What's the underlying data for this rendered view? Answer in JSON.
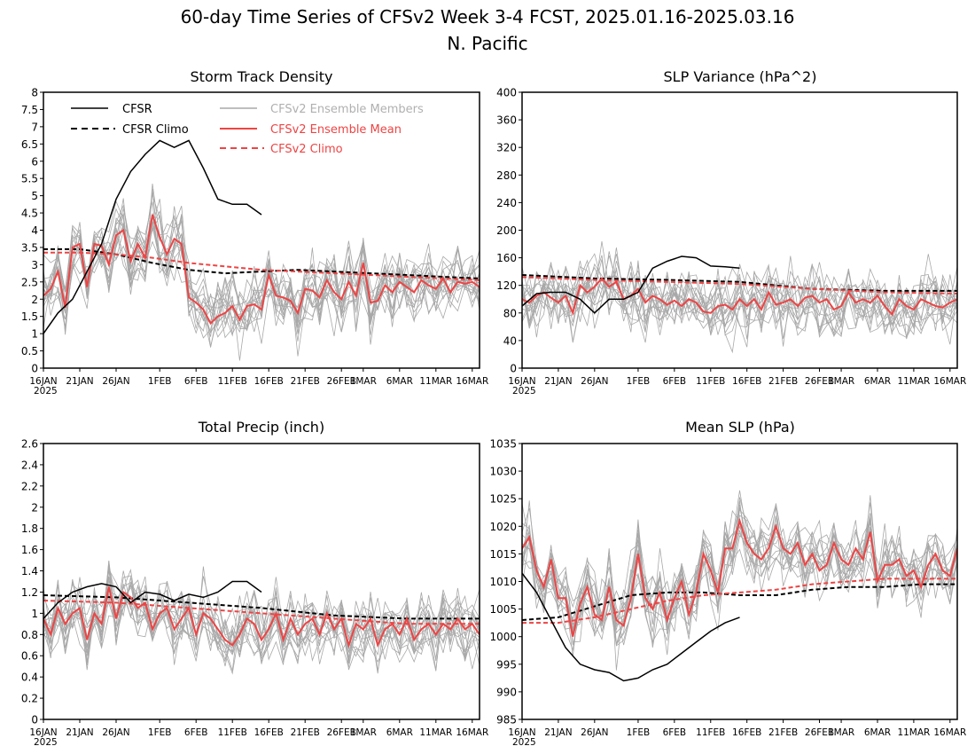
{
  "figure": {
    "title_line1": "60-day Time Series of CFSv2 Week 3-4 FCST, 2025.01.16-2025.03.16",
    "title_line2": "N. Pacific"
  },
  "colors": {
    "cfsr": "#000000",
    "members": "#a8a8a8",
    "ens_mean": "#ee4444",
    "cfsv2_climo": "#ee4444",
    "legend_members_text": "#b0b0b0",
    "legend_red_text": "#ee4444"
  },
  "legend": {
    "cfsr": "CFSR",
    "cfsr_climo": "CFSR Climo",
    "members": "CFSv2 Ensemble Members",
    "ens_mean": "CFSv2 Ensemble Mean",
    "cfsv2_climo": "CFSv2 Climo"
  },
  "x_axis": {
    "labels": [
      "16JAN",
      "21JAN",
      "26JAN",
      "1FEB",
      "6FEB",
      "11FEB",
      "16FEB",
      "21FEB",
      "26FEB",
      "1MAR",
      "6MAR",
      "11MAR",
      "16MAR"
    ],
    "year_label": "2025"
  },
  "chart_data": [
    {
      "type": "line",
      "title": "Storm Track Density",
      "ylim": [
        0,
        8
      ],
      "yticks": [
        "0",
        "0.5",
        "1",
        "1.5",
        "2",
        "2.5",
        "3",
        "3.5",
        "4",
        "4.5",
        "5",
        "5.5",
        "6",
        "6.5",
        "7",
        "7.5",
        "8"
      ],
      "x_day_range": [
        0,
        60
      ],
      "ensemble_members": {
        "count": 16,
        "note": "gray spaghetti lines around the ensemble mean"
      },
      "series": [
        {
          "name": "CFSR",
          "style": "solid-black",
          "x": [
            0,
            2,
            4,
            6,
            8,
            10,
            12,
            14,
            16,
            18,
            20,
            22,
            24,
            26,
            28,
            30
          ],
          "y": [
            1.0,
            1.6,
            2.0,
            2.8,
            3.6,
            4.9,
            5.7,
            6.2,
            6.6,
            6.4,
            6.6,
            5.8,
            4.9,
            4.75,
            4.75,
            4.45
          ]
        },
        {
          "name": "CFSR Climo",
          "style": "dashed-black",
          "x": [
            0,
            5,
            10,
            15,
            20,
            25,
            30,
            35,
            40,
            45,
            50,
            55,
            60
          ],
          "y": [
            3.45,
            3.45,
            3.3,
            3.05,
            2.85,
            2.75,
            2.8,
            2.85,
            2.8,
            2.75,
            2.7,
            2.65,
            2.6
          ]
        },
        {
          "name": "CFSv2 Ensemble Mean",
          "style": "solid-red",
          "x": [
            0,
            1,
            2,
            3,
            4,
            5,
            6,
            7,
            8,
            9,
            10,
            11,
            12,
            13,
            14,
            15,
            16,
            17,
            18,
            19,
            20,
            21,
            22,
            23,
            24,
            25,
            26,
            27,
            28,
            29,
            30,
            31,
            32,
            33,
            34,
            35,
            36,
            37,
            38,
            39,
            40,
            41,
            42,
            43,
            44,
            45,
            46,
            47,
            48,
            49,
            50,
            51,
            52,
            53,
            54,
            55,
            56,
            57,
            58,
            59,
            60
          ],
          "y": [
            2.1,
            2.3,
            2.8,
            1.75,
            3.5,
            3.6,
            2.35,
            3.6,
            3.55,
            3.0,
            3.85,
            4.0,
            3.1,
            3.6,
            3.2,
            4.45,
            3.8,
            3.3,
            3.75,
            3.6,
            2.05,
            1.9,
            1.7,
            1.3,
            1.5,
            1.6,
            1.8,
            1.4,
            1.8,
            1.85,
            1.7,
            2.7,
            2.1,
            2.05,
            1.95,
            1.6,
            2.3,
            2.25,
            2.05,
            2.55,
            2.2,
            2.0,
            2.5,
            2.1,
            3.05,
            1.9,
            1.95,
            2.4,
            2.2,
            2.5,
            2.35,
            2.2,
            2.55,
            2.4,
            2.3,
            2.6,
            2.2,
            2.5,
            2.45,
            2.5,
            2.35
          ]
        },
        {
          "name": "CFSv2 Climo",
          "style": "dashed-red",
          "x": [
            0,
            5,
            10,
            15,
            20,
            25,
            30,
            35,
            40,
            45,
            50,
            55,
            60
          ],
          "y": [
            3.35,
            3.35,
            3.3,
            3.2,
            3.05,
            2.95,
            2.85,
            2.8,
            2.75,
            2.7,
            2.65,
            2.6,
            2.55
          ]
        }
      ]
    },
    {
      "type": "line",
      "title": "SLP Variance (hPa^2)",
      "ylim": [
        0,
        400
      ],
      "yticks": [
        "0",
        "40",
        "80",
        "120",
        "160",
        "200",
        "240",
        "280",
        "320",
        "360",
        "400"
      ],
      "x_day_range": [
        0,
        60
      ],
      "ensemble_members": {
        "count": 16,
        "note": "gray spaghetti lines around the ensemble mean"
      },
      "series": [
        {
          "name": "CFSR",
          "style": "solid-black",
          "x": [
            0,
            2,
            4,
            6,
            8,
            10,
            12,
            14,
            16,
            18,
            20,
            22,
            24,
            26,
            28,
            30
          ],
          "y": [
            90,
            108,
            110,
            110,
            100,
            80,
            100,
            100,
            110,
            145,
            155,
            162,
            160,
            148,
            147,
            145
          ]
        },
        {
          "name": "CFSR Climo",
          "style": "dashed-black",
          "x": [
            0,
            10,
            20,
            30,
            40,
            50,
            60
          ],
          "y": [
            135,
            130,
            128,
            125,
            115,
            112,
            112
          ]
        },
        {
          "name": "CFSv2 Ensemble Mean",
          "style": "solid-red",
          "x": [
            0,
            1,
            2,
            3,
            4,
            5,
            6,
            7,
            8,
            9,
            10,
            11,
            12,
            13,
            14,
            15,
            16,
            17,
            18,
            19,
            20,
            21,
            22,
            23,
            24,
            25,
            26,
            27,
            28,
            29,
            30,
            31,
            32,
            33,
            34,
            35,
            36,
            37,
            38,
            39,
            40,
            41,
            42,
            43,
            44,
            45,
            46,
            47,
            48,
            49,
            50,
            51,
            52,
            53,
            54,
            55,
            56,
            57,
            58,
            59,
            60
          ],
          "y": [
            100,
            95,
            105,
            110,
            102,
            95,
            105,
            80,
            120,
            110,
            118,
            130,
            118,
            125,
            100,
            105,
            115,
            95,
            105,
            100,
            92,
            98,
            90,
            100,
            95,
            82,
            80,
            90,
            92,
            85,
            100,
            90,
            100,
            85,
            110,
            92,
            95,
            100,
            90,
            102,
            105,
            95,
            100,
            85,
            90,
            110,
            95,
            100,
            95,
            105,
            90,
            78,
            100,
            90,
            85,
            100,
            95,
            90,
            88,
            95,
            100
          ]
        },
        {
          "name": "CFSv2 Climo",
          "style": "dashed-red",
          "x": [
            0,
            10,
            20,
            30,
            40,
            50,
            60
          ],
          "y": [
            132,
            128,
            125,
            122,
            115,
            110,
            108
          ]
        }
      ]
    },
    {
      "type": "line",
      "title": "Total Precip (inch)",
      "ylim": [
        0,
        2.6
      ],
      "yticks": [
        "0",
        "0.2",
        "0.4",
        "0.6",
        "0.8",
        "1",
        "1.2",
        "1.4",
        "1.6",
        "1.8",
        "2",
        "2.2",
        "2.4",
        "2.6"
      ],
      "x_day_range": [
        0,
        60
      ],
      "ensemble_members": {
        "count": 16,
        "note": "gray spaghetti lines around the ensemble mean"
      },
      "series": [
        {
          "name": "CFSR",
          "style": "solid-black",
          "x": [
            0,
            2,
            4,
            6,
            8,
            10,
            12,
            14,
            16,
            18,
            20,
            22,
            24,
            26,
            28,
            30
          ],
          "y": [
            0.95,
            1.1,
            1.2,
            1.25,
            1.28,
            1.25,
            1.1,
            1.2,
            1.18,
            1.12,
            1.18,
            1.15,
            1.2,
            1.3,
            1.3,
            1.2
          ]
        },
        {
          "name": "CFSR Climo",
          "style": "dashed-black",
          "x": [
            0,
            10,
            20,
            30,
            40,
            50,
            60
          ],
          "y": [
            1.17,
            1.15,
            1.1,
            1.05,
            0.98,
            0.95,
            0.95
          ]
        },
        {
          "name": "CFSv2 Ensemble Mean",
          "style": "solid-red",
          "x": [
            0,
            1,
            2,
            3,
            4,
            5,
            6,
            7,
            8,
            9,
            10,
            11,
            12,
            13,
            14,
            15,
            16,
            17,
            18,
            19,
            20,
            21,
            22,
            23,
            24,
            25,
            26,
            27,
            28,
            29,
            30,
            31,
            32,
            33,
            34,
            35,
            36,
            37,
            38,
            39,
            40,
            41,
            42,
            43,
            44,
            45,
            46,
            47,
            48,
            49,
            50,
            51,
            52,
            53,
            54,
            55,
            56,
            57,
            58,
            59,
            60
          ],
          "y": [
            0.95,
            0.8,
            1.05,
            0.9,
            1.0,
            1.05,
            0.75,
            1.0,
            0.9,
            1.25,
            0.95,
            1.2,
            1.15,
            1.05,
            1.1,
            0.85,
            1.0,
            1.05,
            0.85,
            0.95,
            1.05,
            0.8,
            1.0,
            0.95,
            0.85,
            0.75,
            0.7,
            0.8,
            0.95,
            0.9,
            0.75,
            0.85,
            1.0,
            0.75,
            0.95,
            0.8,
            0.9,
            0.95,
            0.8,
            1.0,
            0.85,
            0.95,
            0.7,
            0.9,
            0.85,
            0.95,
            0.7,
            0.85,
            0.9,
            0.8,
            0.95,
            0.75,
            0.85,
            0.9,
            0.8,
            0.9,
            0.85,
            0.95,
            0.85,
            0.9,
            0.8
          ]
        },
        {
          "name": "CFSv2 Climo",
          "style": "dashed-red",
          "x": [
            0,
            10,
            20,
            30,
            40,
            50,
            60
          ],
          "y": [
            1.12,
            1.1,
            1.05,
            1.0,
            0.95,
            0.9,
            0.9
          ]
        }
      ]
    },
    {
      "type": "line",
      "title": "Mean SLP (hPa)",
      "ylim": [
        985,
        1035
      ],
      "yticks": [
        "985",
        "990",
        "995",
        "1000",
        "1005",
        "1010",
        "1015",
        "1020",
        "1025",
        "1030",
        "1035"
      ],
      "x_day_range": [
        0,
        60
      ],
      "ensemble_members": {
        "count": 16,
        "note": "gray spaghetti lines around the ensemble mean"
      },
      "series": [
        {
          "name": "CFSR",
          "style": "solid-black",
          "x": [
            0,
            2,
            4,
            6,
            8,
            10,
            12,
            14,
            16,
            18,
            20,
            22,
            24,
            26,
            28,
            30
          ],
          "y": [
            1011.5,
            1008,
            1003,
            998,
            995,
            994,
            993.5,
            992,
            992.5,
            994,
            995,
            997,
            999,
            1001,
            1002.5,
            1003.5
          ]
        },
        {
          "name": "CFSR Climo",
          "style": "dashed-black",
          "x": [
            0,
            5,
            10,
            15,
            20,
            25,
            30,
            35,
            40,
            45,
            50,
            55,
            60
          ],
          "y": [
            1003,
            1003.5,
            1005.5,
            1007.5,
            1008,
            1008,
            1007.5,
            1007.5,
            1008.5,
            1009,
            1009,
            1009.5,
            1009.5
          ]
        },
        {
          "name": "CFSv2 Ensemble Mean",
          "style": "solid-red",
          "x": [
            0,
            1,
            2,
            3,
            4,
            5,
            6,
            7,
            8,
            9,
            10,
            11,
            12,
            13,
            14,
            15,
            16,
            17,
            18,
            19,
            20,
            21,
            22,
            23,
            24,
            25,
            26,
            27,
            28,
            29,
            30,
            31,
            32,
            33,
            34,
            35,
            36,
            37,
            38,
            39,
            40,
            41,
            42,
            43,
            44,
            45,
            46,
            47,
            48,
            49,
            50,
            51,
            52,
            53,
            54,
            55,
            56,
            57,
            58,
            59,
            60
          ],
          "y": [
            1016,
            1018,
            1012,
            1009,
            1014,
            1007,
            1007,
            1000,
            1006,
            1009,
            1004,
            1003,
            1009,
            1003,
            1002,
            1007,
            1015,
            1007,
            1005,
            1008,
            1003,
            1007,
            1010,
            1004,
            1008,
            1015,
            1012,
            1008,
            1016,
            1016,
            1021,
            1017,
            1015,
            1014,
            1016,
            1020,
            1016,
            1015,
            1017,
            1013,
            1015,
            1012,
            1013,
            1017,
            1014,
            1013,
            1016,
            1014,
            1019,
            1010,
            1013,
            1013,
            1014,
            1011,
            1012,
            1009,
            1013,
            1015,
            1012,
            1011,
            1016
          ]
        },
        {
          "name": "CFSv2 Climo",
          "style": "dashed-red",
          "x": [
            0,
            5,
            10,
            15,
            20,
            25,
            30,
            35,
            40,
            45,
            50,
            55,
            60
          ],
          "y": [
            1002.5,
            1002.5,
            1003.5,
            1005,
            1006.5,
            1007.5,
            1008,
            1008.5,
            1009.5,
            1010,
            1010.5,
            1010.5,
            1010.5
          ]
        }
      ]
    }
  ]
}
